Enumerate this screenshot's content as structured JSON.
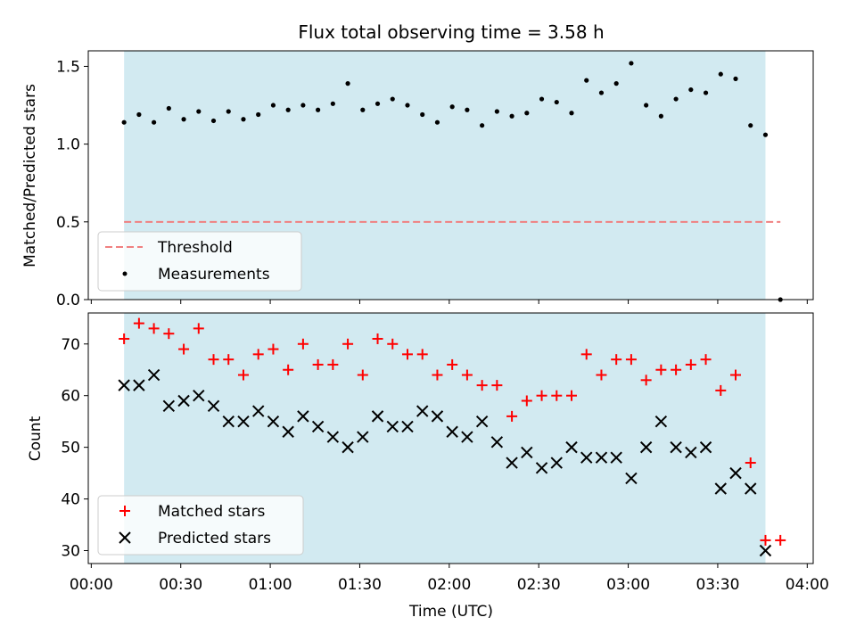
{
  "chart_data": [
    {
      "type": "scatter",
      "title": "Flux total observing time = 3.58 h",
      "xlabel": "",
      "ylabel": "Matched/Predicted stars",
      "ylim": [
        0,
        1.6
      ],
      "yticks": [
        "0.0",
        "0.5",
        "1.0",
        "1.5"
      ],
      "xlim_minutes": [
        -1,
        242
      ],
      "shaded_region_minutes": [
        11,
        226
      ],
      "colors": {
        "shade": "#add8e6",
        "threshold": "#f08080",
        "points": "#000000"
      },
      "legend_position": "lower-left",
      "threshold": {
        "name": "Threshold",
        "y": 0.5,
        "x_range_minutes": [
          11,
          231
        ]
      },
      "series": [
        {
          "name": "Measurements",
          "x_minutes": [
            11,
            16,
            21,
            26,
            31,
            36,
            41,
            46,
            51,
            56,
            61,
            66,
            71,
            76,
            81,
            86,
            91,
            96,
            101,
            106,
            111,
            116,
            121,
            126,
            131,
            136,
            141,
            146,
            151,
            156,
            161,
            166,
            171,
            176,
            181,
            186,
            191,
            196,
            201,
            206,
            211,
            216,
            221,
            226,
            231
          ],
          "values": [
            1.14,
            1.19,
            1.14,
            1.23,
            1.16,
            1.21,
            1.15,
            1.21,
            1.16,
            1.19,
            1.25,
            1.22,
            1.25,
            1.22,
            1.26,
            1.39,
            1.22,
            1.26,
            1.29,
            1.25,
            1.19,
            1.14,
            1.24,
            1.22,
            1.12,
            1.21,
            1.18,
            1.2,
            1.29,
            1.27,
            1.2,
            1.41,
            1.33,
            1.39,
            1.52,
            1.25,
            1.18,
            1.29,
            1.35,
            1.33,
            1.45,
            1.42,
            1.12,
            1.06,
            0.0
          ]
        }
      ]
    },
    {
      "type": "scatter",
      "title": "",
      "xlabel": "Time (UTC)",
      "ylabel": "Count",
      "ylim": [
        27.5,
        76
      ],
      "yticks": [
        "30",
        "40",
        "50",
        "60",
        "70"
      ],
      "xticks": [
        "00:00",
        "00:30",
        "01:00",
        "01:30",
        "02:00",
        "02:30",
        "03:00",
        "03:30",
        "04:00"
      ],
      "xlim_minutes": [
        -1,
        242
      ],
      "shaded_region_minutes": [
        11,
        226
      ],
      "colors": {
        "shade": "#add8e6",
        "matched": "#ff0000",
        "predicted": "#000000"
      },
      "legend_position": "lower-left",
      "series": [
        {
          "name": "Matched stars",
          "marker": "plus",
          "x_minutes": [
            11,
            16,
            21,
            26,
            31,
            36,
            41,
            46,
            51,
            56,
            61,
            66,
            71,
            76,
            81,
            86,
            91,
            96,
            101,
            106,
            111,
            116,
            121,
            126,
            131,
            136,
            141,
            146,
            151,
            156,
            161,
            166,
            171,
            176,
            181,
            186,
            191,
            196,
            201,
            206,
            211,
            216,
            221,
            226,
            231
          ],
          "values": [
            71,
            74,
            73,
            72,
            69,
            73,
            67,
            67,
            64,
            68,
            69,
            65,
            70,
            66,
            66,
            70,
            64,
            71,
            70,
            68,
            68,
            64,
            66,
            64,
            62,
            62,
            56,
            59,
            60,
            60,
            60,
            68,
            64,
            67,
            67,
            63,
            65,
            65,
            66,
            67,
            61,
            64,
            47,
            32,
            32
          ]
        },
        {
          "name": "Predicted stars",
          "marker": "x",
          "x_minutes": [
            11,
            16,
            21,
            26,
            31,
            36,
            41,
            46,
            51,
            56,
            61,
            66,
            71,
            76,
            81,
            86,
            91,
            96,
            101,
            106,
            111,
            116,
            121,
            126,
            131,
            136,
            141,
            146,
            151,
            156,
            161,
            166,
            171,
            176,
            181,
            186,
            191,
            196,
            201,
            206,
            211,
            216,
            221,
            226
          ],
          "values": [
            62,
            62,
            64,
            58,
            59,
            60,
            58,
            55,
            55,
            57,
            55,
            53,
            56,
            54,
            52,
            50,
            52,
            56,
            54,
            54,
            57,
            56,
            53,
            52,
            55,
            51,
            47,
            49,
            46,
            47,
            50,
            48,
            48,
            48,
            44,
            50,
            55,
            50,
            49,
            50,
            42,
            45,
            42,
            30
          ]
        }
      ]
    }
  ]
}
